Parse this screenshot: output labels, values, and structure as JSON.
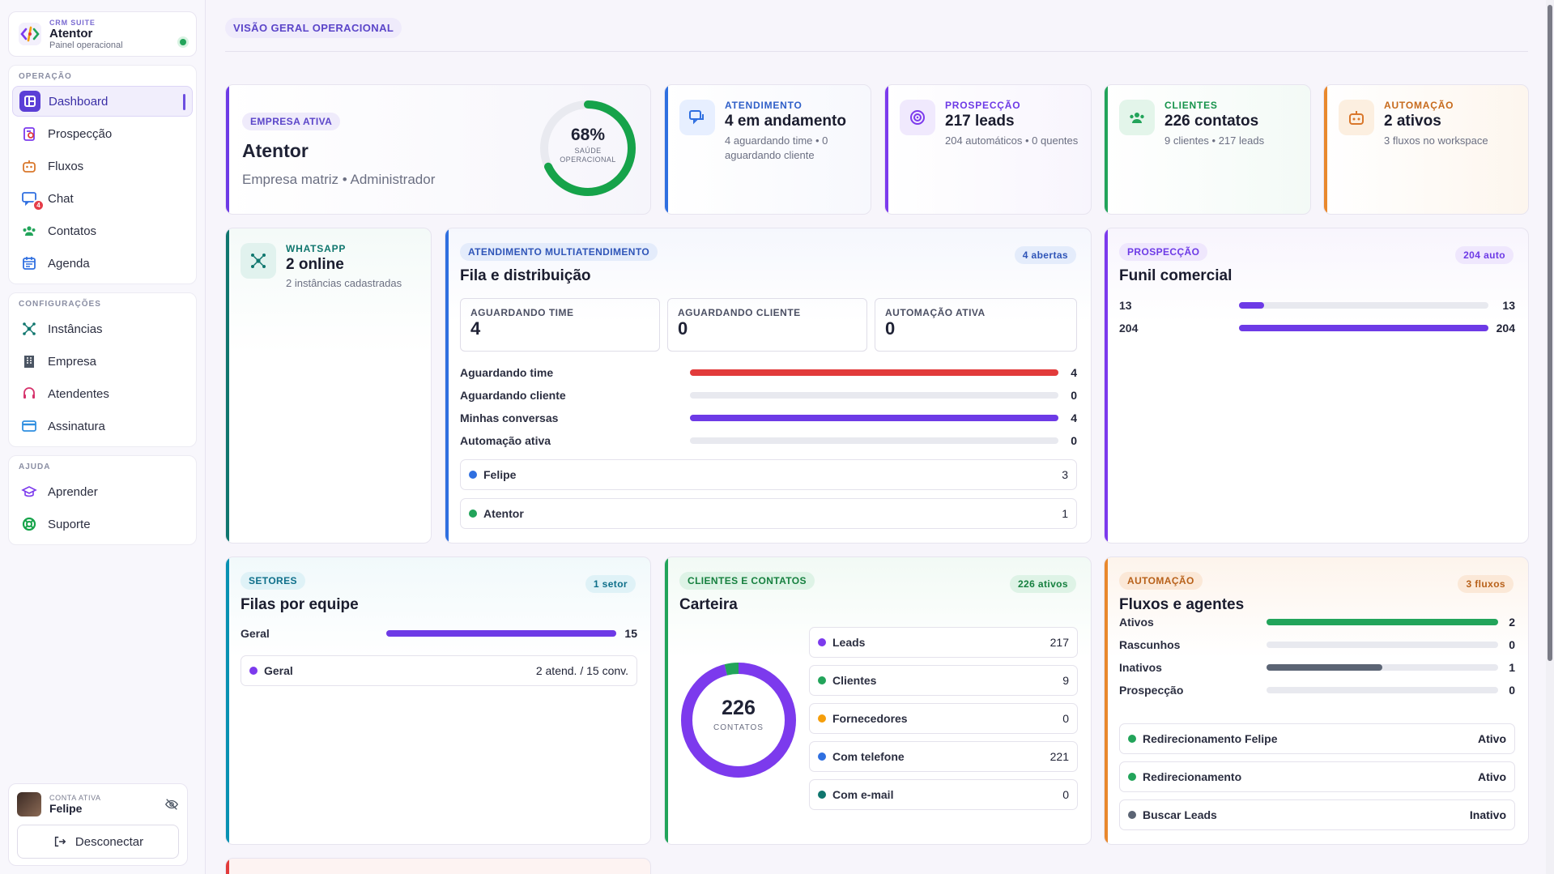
{
  "brand": {
    "kicker": "CRM SUITE",
    "name": "Atentor",
    "subtitle": "Painel operacional"
  },
  "sidebar": {
    "groups": [
      {
        "title": "OPERAÇÃO",
        "items": [
          {
            "label": "Dashboard",
            "icon": "dashboard-icon"
          },
          {
            "label": "Prospecção",
            "icon": "prospect-icon"
          },
          {
            "label": "Fluxos",
            "icon": "bot-icon"
          },
          {
            "label": "Chat",
            "icon": "chat-icon",
            "badge": "4"
          },
          {
            "label": "Contatos",
            "icon": "contacts-icon"
          },
          {
            "label": "Agenda",
            "icon": "calendar-icon"
          }
        ]
      },
      {
        "title": "CONFIGURAÇÕES",
        "items": [
          {
            "label": "Instâncias",
            "icon": "network-icon"
          },
          {
            "label": "Empresa",
            "icon": "building-icon"
          },
          {
            "label": "Atendentes",
            "icon": "headset-icon"
          },
          {
            "label": "Assinatura",
            "icon": "credit-card-icon"
          }
        ]
      },
      {
        "title": "AJUDA",
        "items": [
          {
            "label": "Aprender",
            "icon": "graduation-icon"
          },
          {
            "label": "Suporte",
            "icon": "lifebuoy-icon"
          }
        ]
      }
    ]
  },
  "account": {
    "kicker": "CONTA ATIVA",
    "name": "Felipe",
    "logout_label": "Desconectar"
  },
  "page": {
    "pill": "VISÃO GERAL OPERACIONAL"
  },
  "company": {
    "pill": "EMPRESA ATIVA",
    "name": "Atentor",
    "detail": "Empresa matriz • Administrador",
    "health_value": "68%",
    "health_fraction": 0.68,
    "health_label": "SAÚDE OPERACIONAL"
  },
  "stats": [
    {
      "kicker": "ATENDIMENTO",
      "value": "4 em andamento",
      "detail": "4 aguardando time • 0 aguardando cliente"
    },
    {
      "kicker": "PROSPECÇÃO",
      "value": "217 leads",
      "detail": "204 automáticos • 0 quentes"
    },
    {
      "kicker": "CLIENTES",
      "value": "226 contatos",
      "detail": "9 clientes • 217 leads"
    },
    {
      "kicker": "AUTOMAÇÃO",
      "value": "2 ativos",
      "detail": "3 fluxos no workspace"
    }
  ],
  "whatsapp": {
    "kicker": "WHATSAPP",
    "value": "2 online",
    "detail": "2 instâncias cadastradas"
  },
  "queue": {
    "pill": "ATENDIMENTO MULTIATENDIMENTO",
    "title": "Fila e distribuição",
    "badge": "4 abertas",
    "boxes": [
      {
        "label": "AGUARDANDO TIME",
        "value": "4"
      },
      {
        "label": "AGUARDANDO CLIENTE",
        "value": "0"
      },
      {
        "label": "AUTOMAÇÃO ATIVA",
        "value": "0"
      }
    ],
    "bars": [
      {
        "label": "Aguardando time",
        "value": "4",
        "fraction": 1,
        "color": "#e23b3b"
      },
      {
        "label": "Aguardando cliente",
        "value": "0",
        "fraction": 0,
        "color": "#e8e9ef"
      },
      {
        "label": "Minhas conversas",
        "value": "4",
        "fraction": 1,
        "color": "#6d3ae6"
      },
      {
        "label": "Automação ativa",
        "value": "0",
        "fraction": 0,
        "color": "#e8e9ef"
      }
    ],
    "agents": [
      {
        "name": "Felipe",
        "count": "3",
        "color": "#2f6fe0"
      },
      {
        "name": "Atentor",
        "count": "1",
        "color": "#22a45a"
      }
    ]
  },
  "funnel": {
    "pill": "PROSPECÇÃO",
    "title": "Funil comercial",
    "badge": "204 auto",
    "bars": [
      {
        "label": "13",
        "value": "13",
        "fraction": 0.1
      },
      {
        "label": "204",
        "value": "204",
        "fraction": 1
      }
    ]
  },
  "sectors": {
    "pill": "SETORES",
    "title": "Filas por equipe",
    "badge": "1 setor",
    "bar": {
      "label": "Geral",
      "value": "15",
      "fraction": 1
    },
    "row": {
      "name": "Geral",
      "detail": "2 atend. / 15 conv."
    }
  },
  "portfolio": {
    "pill": "CLIENTES E CONTATOS",
    "title": "Carteira",
    "badge": "226 ativos",
    "total": "226",
    "total_label": "CONTATOS",
    "items": [
      {
        "name": "Leads",
        "count": "217",
        "color": "#7c3aed"
      },
      {
        "name": "Clientes",
        "count": "9",
        "color": "#22a45a"
      },
      {
        "name": "Fornecedores",
        "count": "0",
        "color": "#f59e0b"
      },
      {
        "name": "Com telefone",
        "count": "221",
        "color": "#2f6fe0"
      },
      {
        "name": "Com e-mail",
        "count": "0",
        "color": "#0f766e"
      }
    ]
  },
  "automation": {
    "pill": "AUTOMAÇÃO",
    "title": "Fluxos e agentes",
    "badge": "3 fluxos",
    "bars": [
      {
        "label": "Ativos",
        "value": "2",
        "fraction": 1,
        "color": "#22a45a"
      },
      {
        "label": "Rascunhos",
        "value": "0",
        "fraction": 0,
        "color": "#e8e9ef"
      },
      {
        "label": "Inativos",
        "value": "1",
        "fraction": 0.5,
        "color": "#5b6474"
      },
      {
        "label": "Prospecção",
        "value": "0",
        "fraction": 0,
        "color": "#e8e9ef"
      }
    ],
    "flows": [
      {
        "name": "Redirecionamento Felipe",
        "status": "Ativo",
        "color": "#22a45a"
      },
      {
        "name": "Redirecionamento",
        "status": "Ativo",
        "color": "#22a45a"
      },
      {
        "name": "Buscar Leads",
        "status": "Inativo",
        "color": "#5b6474"
      }
    ]
  }
}
